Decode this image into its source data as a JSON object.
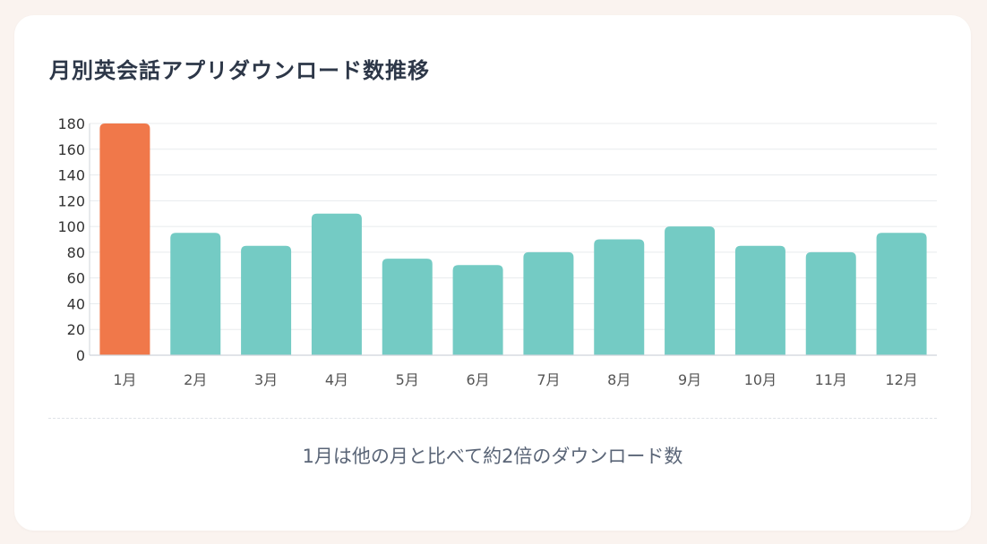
{
  "chart_data": {
    "type": "bar",
    "title": "月別英会話アプリダウンロード数推移",
    "categories": [
      "1月",
      "2月",
      "3月",
      "4月",
      "5月",
      "6月",
      "7月",
      "8月",
      "9月",
      "10月",
      "11月",
      "12月"
    ],
    "values": [
      180,
      95,
      85,
      110,
      75,
      70,
      80,
      90,
      100,
      85,
      80,
      95
    ],
    "ylim": [
      0,
      180
    ],
    "yticks": [
      0,
      20,
      40,
      60,
      80,
      100,
      120,
      140,
      160,
      180
    ],
    "xlabel": "",
    "ylabel": "",
    "grid": true,
    "highlight_index": 0,
    "colors": {
      "highlight": "#f0784a",
      "default": "#74cbc4",
      "grid": "#e8ebee",
      "axis": "#cfd4da"
    }
  },
  "caption": "1月は他の月と比べて約2倍のダウンロード数"
}
